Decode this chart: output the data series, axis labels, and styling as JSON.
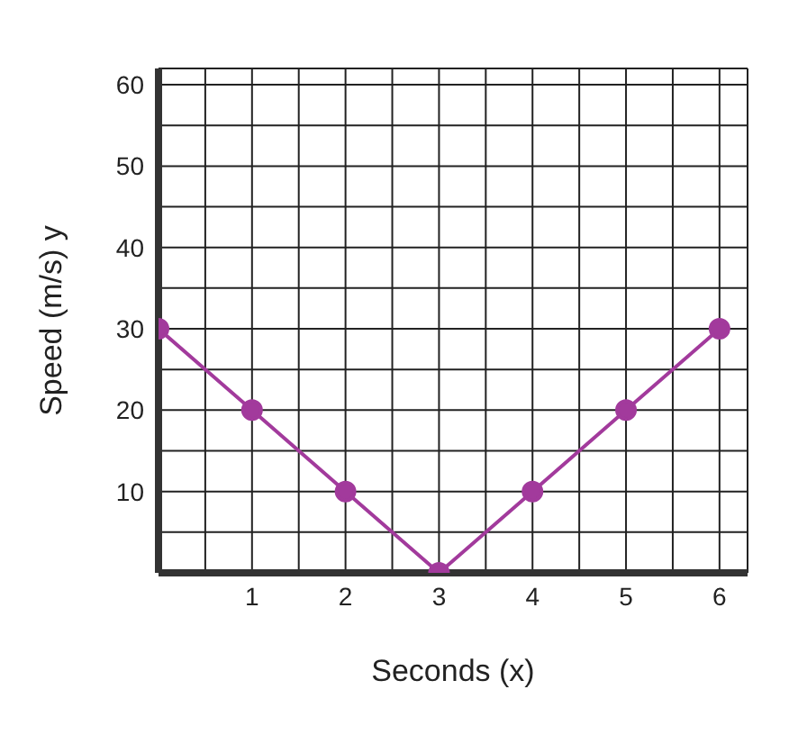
{
  "chart_data": {
    "type": "line",
    "xlabel": "Seconds (x)",
    "ylabel": "Speed (m/s)  y",
    "x": [
      0,
      1,
      2,
      3,
      4,
      5,
      6
    ],
    "series": [
      {
        "color": "#a23a9c",
        "values": [
          30,
          20,
          10,
          0,
          10,
          20,
          30
        ]
      }
    ],
    "xlim": [
      0,
      6.3
    ],
    "ylim": [
      0,
      62
    ],
    "xticks": [
      {
        "value": 0.5,
        "label": null
      },
      1,
      {
        "value": 1.5,
        "label": null
      },
      2,
      {
        "value": 2.5,
        "label": null
      },
      3,
      {
        "value": 3.5,
        "label": null
      },
      4,
      {
        "value": 4.5,
        "label": null
      },
      5,
      {
        "value": 5.5,
        "label": null
      },
      6
    ],
    "yticks": [
      {
        "value": 5,
        "label": null
      },
      10,
      {
        "value": 15,
        "label": null
      },
      20,
      {
        "value": 25,
        "label": null
      },
      30,
      {
        "value": 35,
        "label": null
      },
      40,
      {
        "value": 45,
        "label": null
      },
      50,
      {
        "value": 55,
        "label": null
      },
      60
    ],
    "grid": true,
    "marker": "circle",
    "line_style": "solid",
    "legend": false
  }
}
